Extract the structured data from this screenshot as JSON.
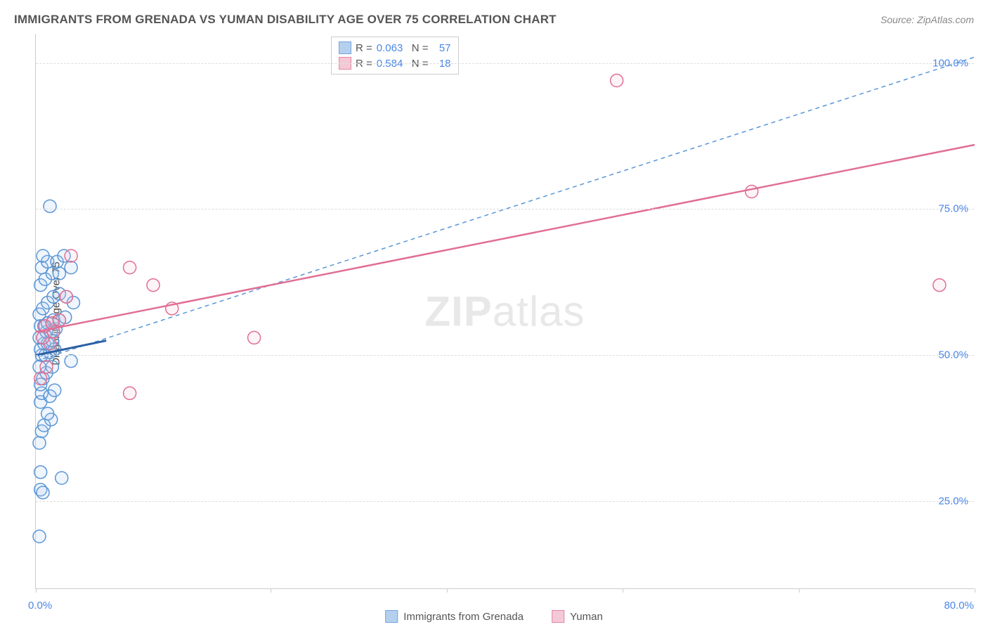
{
  "title": "IMMIGRANTS FROM GRENADA VS YUMAN DISABILITY AGE OVER 75 CORRELATION CHART",
  "source": "Source: ZipAtlas.com",
  "ylabel": "Disability Age Over 75",
  "watermark_bold": "ZIP",
  "watermark_rest": "atlas",
  "chart": {
    "type": "scatter",
    "background_color": "#ffffff",
    "grid_color": "#dddddd",
    "axis_color": "#cccccc",
    "xlim": [
      0,
      80
    ],
    "ylim": [
      10,
      105
    ],
    "xticks": [
      0,
      20,
      35,
      50,
      65,
      80
    ],
    "xtick_start_label": "0.0%",
    "xtick_end_label": "80.0%",
    "yticks": [
      {
        "v": 25,
        "label": "25.0%"
      },
      {
        "v": 50,
        "label": "50.0%"
      },
      {
        "v": 75,
        "label": "75.0%"
      },
      {
        "v": 100,
        "label": "100.0%"
      }
    ],
    "marker_radius": 9,
    "marker_stroke_width": 1.5,
    "marker_fill_opacity": 0.18,
    "series": [
      {
        "name": "Immigrants from Grenada",
        "color_stroke": "#5a96d6",
        "color_fill": "#a9c8ec",
        "R": "0.063",
        "N": "57",
        "trend": {
          "x1": 0,
          "y1": 49,
          "x2": 80,
          "y2": 101,
          "dash": "6 5",
          "color": "#5a96d6",
          "width": 1.5
        },
        "trend_short": {
          "x1": 0,
          "y1": 50,
          "x2": 6,
          "y2": 52.5,
          "color": "#2b5fa4",
          "width": 3
        },
        "points": [
          [
            0.3,
            19
          ],
          [
            0.4,
            27
          ],
          [
            0.6,
            26.5
          ],
          [
            2.2,
            29
          ],
          [
            0.4,
            30
          ],
          [
            0.3,
            35
          ],
          [
            0.5,
            37
          ],
          [
            0.7,
            38
          ],
          [
            1.3,
            39
          ],
          [
            1.0,
            40
          ],
          [
            0.4,
            42
          ],
          [
            0.5,
            43.5
          ],
          [
            1.2,
            43
          ],
          [
            1.6,
            44
          ],
          [
            0.4,
            45
          ],
          [
            0.6,
            46
          ],
          [
            0.9,
            47
          ],
          [
            1.4,
            48
          ],
          [
            0.3,
            48
          ],
          [
            3.0,
            49
          ],
          [
            0.5,
            50
          ],
          [
            0.8,
            50
          ],
          [
            1.2,
            50.5
          ],
          [
            1.6,
            51
          ],
          [
            0.4,
            51
          ],
          [
            0.7,
            52
          ],
          [
            1.0,
            52
          ],
          [
            1.4,
            52.5
          ],
          [
            0.3,
            53
          ],
          [
            0.6,
            53
          ],
          [
            0.9,
            54
          ],
          [
            1.3,
            54
          ],
          [
            1.7,
            54.5
          ],
          [
            0.4,
            55
          ],
          [
            0.7,
            55
          ],
          [
            1.0,
            55.5
          ],
          [
            1.5,
            56
          ],
          [
            2.0,
            56
          ],
          [
            2.5,
            56.5
          ],
          [
            0.3,
            57
          ],
          [
            0.6,
            58
          ],
          [
            1.0,
            59
          ],
          [
            1.5,
            60
          ],
          [
            2.0,
            60.5
          ],
          [
            2.6,
            60
          ],
          [
            3.2,
            59
          ],
          [
            0.4,
            62
          ],
          [
            0.8,
            63
          ],
          [
            1.4,
            64
          ],
          [
            2.0,
            64
          ],
          [
            3.0,
            65
          ],
          [
            0.5,
            65
          ],
          [
            1.0,
            66
          ],
          [
            1.8,
            66
          ],
          [
            2.4,
            67
          ],
          [
            0.6,
            67
          ],
          [
            1.2,
            75.5
          ]
        ]
      },
      {
        "name": "Yuman",
        "color_stroke": "#e16f94",
        "color_fill": "#f3c0d0",
        "R": "0.584",
        "N": "18",
        "trend": {
          "x1": 0,
          "y1": 54,
          "x2": 80,
          "y2": 86,
          "dash": "",
          "color": "#e16f94",
          "width": 2.5
        },
        "points": [
          [
            0.4,
            46
          ],
          [
            0.9,
            48
          ],
          [
            1.2,
            52
          ],
          [
            0.6,
            53
          ],
          [
            1.5,
            54
          ],
          [
            0.8,
            55
          ],
          [
            1.4,
            55.5
          ],
          [
            2.0,
            56
          ],
          [
            8.0,
            43.5
          ],
          [
            2.6,
            60
          ],
          [
            8.0,
            65
          ],
          [
            10.0,
            62
          ],
          [
            3.0,
            67
          ],
          [
            11.6,
            58
          ],
          [
            18.6,
            53
          ],
          [
            49.5,
            97
          ],
          [
            61.0,
            78
          ],
          [
            77.0,
            62
          ]
        ]
      }
    ]
  },
  "legend_top": {
    "R_label": "R =",
    "N_label": "N ="
  },
  "colors": {
    "text": "#555555",
    "tick_label": "#4a86e8"
  }
}
